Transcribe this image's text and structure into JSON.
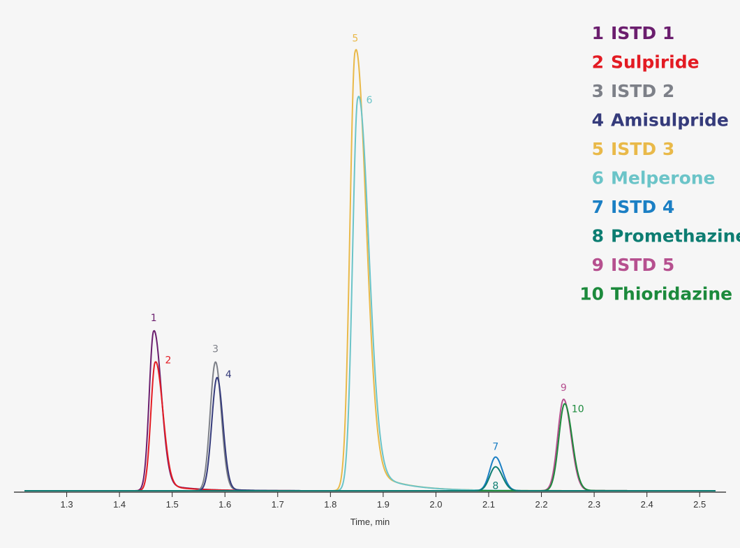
{
  "chart_data": {
    "type": "line",
    "title": "",
    "xlabel": "Time, min",
    "ylabel": "",
    "xlim": [
      1.2,
      2.55
    ],
    "ylim": [
      0,
      100
    ],
    "x_ticks": [
      1.3,
      1.4,
      1.5,
      1.6,
      1.7,
      1.8,
      1.9,
      2.0,
      2.1,
      2.2,
      2.3,
      2.4,
      2.5
    ],
    "x_tick_labels": [
      "1.3",
      "1.4",
      "1.5",
      "1.6",
      "1.7",
      "1.8",
      "1.9",
      "2.0",
      "2.1",
      "2.2",
      "2.3",
      "2.4",
      "2.5"
    ],
    "grid": false,
    "legend_position": "top-right",
    "series": [
      {
        "number": "1",
        "name": "ISTD 1",
        "color": "#6b1e6e",
        "peak_x": 1.465,
        "peak_y": 36.0
      },
      {
        "number": "2",
        "name": "Sulpiride",
        "color": "#e31b23",
        "peak_x": 1.468,
        "peak_y": 29.0
      },
      {
        "number": "3",
        "name": "ISTD 2",
        "color": "#7d8088",
        "peak_x": 1.582,
        "peak_y": 29.0
      },
      {
        "number": "4",
        "name": "Amisulpride",
        "color": "#353b7b",
        "peak_x": 1.585,
        "peak_y": 25.5
      },
      {
        "number": "5",
        "name": "ISTD 3",
        "color": "#e9b949",
        "peak_x": 1.847,
        "peak_y": 99.0
      },
      {
        "number": "6",
        "name": "Melperone",
        "color": "#6bc4c8",
        "peak_x": 1.852,
        "peak_y": 88.5
      },
      {
        "number": "7",
        "name": "ISTD 4",
        "color": "#1b7fc4",
        "peak_x": 2.113,
        "peak_y": 7.6
      },
      {
        "number": "8",
        "name": "Promethazine",
        "color": "#0d7d72",
        "peak_x": 2.113,
        "peak_y": 5.4
      },
      {
        "number": "9",
        "name": "ISTD 5",
        "color": "#b6508f",
        "peak_x": 2.242,
        "peak_y": 20.6
      },
      {
        "number": "10",
        "name": "Thioridazine",
        "color": "#1c8a3c",
        "peak_x": 2.244,
        "peak_y": 19.6
      }
    ]
  }
}
